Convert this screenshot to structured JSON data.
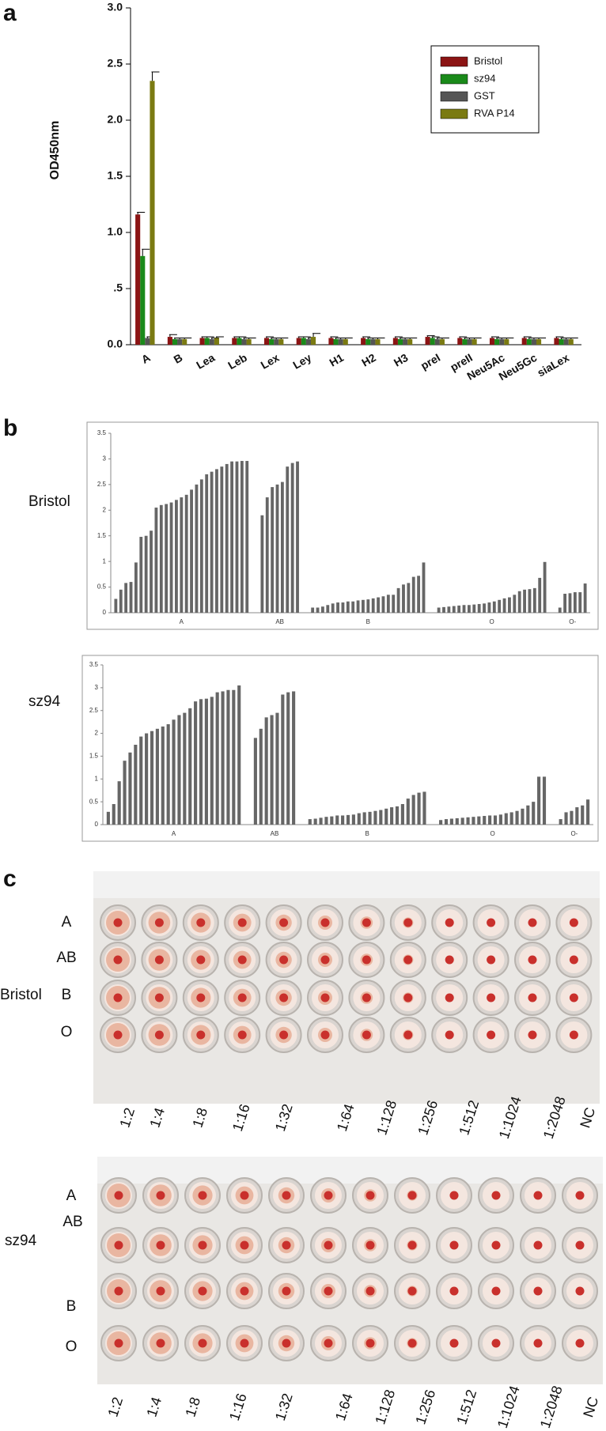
{
  "chart_data": [
    {
      "type": "bar",
      "panel": "a",
      "ylabel": "OD450nm",
      "categories": [
        "A",
        "B",
        "Lea",
        "Leb",
        "Lex",
        "Ley",
        "H1",
        "H2",
        "H3",
        "preI",
        "preII",
        "Neu5Ac",
        "Neu5Gc",
        "siaLex"
      ],
      "series": [
        {
          "name": "Bristol",
          "color": "#8b1414",
          "values": [
            1.16,
            0.07,
            0.06,
            0.06,
            0.06,
            0.06,
            0.06,
            0.06,
            0.06,
            0.07,
            0.06,
            0.06,
            0.06,
            0.06
          ],
          "errors": [
            0.02,
            0.02,
            0.01,
            0.01,
            0.01,
            0.01,
            0.01,
            0.01,
            0.01,
            0.01,
            0.01,
            0.01,
            0.01,
            0.01
          ]
        },
        {
          "name": "sz94",
          "color": "#1a8a1a",
          "values": [
            0.79,
            0.05,
            0.06,
            0.06,
            0.05,
            0.06,
            0.05,
            0.05,
            0.05,
            0.06,
            0.05,
            0.05,
            0.05,
            0.05
          ],
          "errors": [
            0.06,
            0.01,
            0.01,
            0.01,
            0.01,
            0.01,
            0.01,
            0.01,
            0.01,
            0.01,
            0.01,
            0.01,
            0.01,
            0.01
          ]
        },
        {
          "name": "GST",
          "color": "#555555",
          "values": [
            0.06,
            0.05,
            0.05,
            0.05,
            0.05,
            0.05,
            0.05,
            0.05,
            0.05,
            0.05,
            0.05,
            0.05,
            0.05,
            0.05
          ],
          "errors": [
            0.01,
            0.01,
            0.01,
            0.01,
            0.01,
            0.01,
            0.01,
            0.01,
            0.01,
            0.01,
            0.01,
            0.01,
            0.01,
            0.01
          ]
        },
        {
          "name": "RVA P14",
          "color": "#7a7a12",
          "values": [
            2.35,
            0.05,
            0.06,
            0.05,
            0.05,
            0.07,
            0.05,
            0.05,
            0.05,
            0.05,
            0.05,
            0.05,
            0.05,
            0.05
          ],
          "errors": [
            0.08,
            0.01,
            0.01,
            0.01,
            0.01,
            0.03,
            0.01,
            0.01,
            0.01,
            0.01,
            0.01,
            0.01,
            0.01,
            0.01
          ]
        }
      ],
      "ylim": [
        0,
        3
      ],
      "yticks": [
        {
          "value": 0,
          "label": "0.0"
        },
        {
          "value": 0.5,
          "label": ".5"
        },
        {
          "value": 1,
          "label": "1.0"
        },
        {
          "value": 1.5,
          "label": "1.5"
        },
        {
          "value": 2,
          "label": "2.0"
        },
        {
          "value": 2.5,
          "label": "2.5"
        },
        {
          "value": 3,
          "label": "3.0"
        }
      ],
      "legend": "top-right"
    },
    {
      "type": "grouped-bars",
      "panel": "b",
      "label": "Bristol",
      "color": "#666666",
      "groups": [
        {
          "name": "A",
          "values": [
            0.27,
            0.45,
            0.58,
            0.6,
            0.98,
            1.48,
            1.5,
            1.6,
            2.05,
            2.1,
            2.12,
            2.15,
            2.2,
            2.25,
            2.3,
            2.4,
            2.5,
            2.6,
            2.7,
            2.75,
            2.8,
            2.85,
            2.9,
            2.95,
            2.95,
            2.96,
            2.96
          ]
        },
        {
          "name": "AB",
          "values": [
            1.9,
            2.25,
            2.45,
            2.5,
            2.55,
            2.85,
            2.92,
            2.95
          ]
        },
        {
          "name": "B",
          "values": [
            0.1,
            0.1,
            0.12,
            0.15,
            0.18,
            0.2,
            0.2,
            0.22,
            0.22,
            0.24,
            0.25,
            0.26,
            0.28,
            0.3,
            0.32,
            0.35,
            0.35,
            0.48,
            0.55,
            0.58,
            0.7,
            0.72,
            0.98
          ]
        },
        {
          "name": "O",
          "values": [
            0.1,
            0.11,
            0.12,
            0.13,
            0.14,
            0.15,
            0.15,
            0.16,
            0.17,
            0.18,
            0.2,
            0.22,
            0.25,
            0.28,
            0.3,
            0.35,
            0.42,
            0.45,
            0.46,
            0.48,
            0.68,
            0.99
          ]
        },
        {
          "name": "O-",
          "values": [
            0.1,
            0.37,
            0.38,
            0.4,
            0.4,
            0.57
          ]
        }
      ],
      "ylim": [
        0,
        3.5
      ],
      "yticks": [
        0,
        0.5,
        1,
        1.5,
        2,
        2.5,
        3,
        3.5
      ]
    },
    {
      "type": "grouped-bars",
      "label": "sz94",
      "color": "#666666",
      "groups": [
        {
          "name": "A",
          "values": [
            0.28,
            0.45,
            0.95,
            1.4,
            1.58,
            1.75,
            1.93,
            2.0,
            2.05,
            2.1,
            2.15,
            2.2,
            2.3,
            2.4,
            2.45,
            2.55,
            2.7,
            2.75,
            2.76,
            2.8,
            2.9,
            2.92,
            2.95,
            2.95,
            3.05
          ]
        },
        {
          "name": "AB",
          "values": [
            1.9,
            2.1,
            2.35,
            2.4,
            2.45,
            2.85,
            2.9,
            2.92
          ]
        },
        {
          "name": "B",
          "values": [
            0.12,
            0.13,
            0.15,
            0.17,
            0.18,
            0.2,
            0.2,
            0.21,
            0.22,
            0.25,
            0.27,
            0.28,
            0.3,
            0.32,
            0.35,
            0.38,
            0.4,
            0.45,
            0.57,
            0.65,
            0.7,
            0.72
          ]
        },
        {
          "name": "O",
          "values": [
            0.1,
            0.12,
            0.13,
            0.14,
            0.15,
            0.16,
            0.17,
            0.18,
            0.19,
            0.2,
            0.2,
            0.22,
            0.25,
            0.27,
            0.3,
            0.35,
            0.42,
            0.5,
            1.05,
            1.05
          ]
        },
        {
          "name": "O-",
          "values": [
            0.12,
            0.27,
            0.3,
            0.38,
            0.42,
            0.55
          ]
        }
      ],
      "ylim": [
        0,
        3.5
      ],
      "yticks": [
        0,
        0.5,
        1,
        1.5,
        2,
        2.5,
        3,
        3.5
      ]
    }
  ],
  "photo_panel": {
    "panel": "c",
    "plates": [
      {
        "label": "Bristol",
        "rows": [
          "A",
          "AB",
          "B",
          "O"
        ],
        "dilutions": [
          "1:2",
          "1:4",
          "1:8",
          "1:16",
          "1:32",
          "1:64",
          "1:128",
          "1:256",
          "1:512",
          "1:1024",
          "1:2048",
          "NC"
        ]
      },
      {
        "label": "sz94",
        "rows": [
          "A",
          "AB",
          "B",
          "O"
        ],
        "dilutions": [
          "1:2",
          "1:4",
          "1:8",
          "1:16",
          "1:32",
          "1:64",
          "1:128",
          "1:256",
          "1:512",
          "1:1024",
          "1:2048",
          "NC"
        ]
      }
    ]
  }
}
